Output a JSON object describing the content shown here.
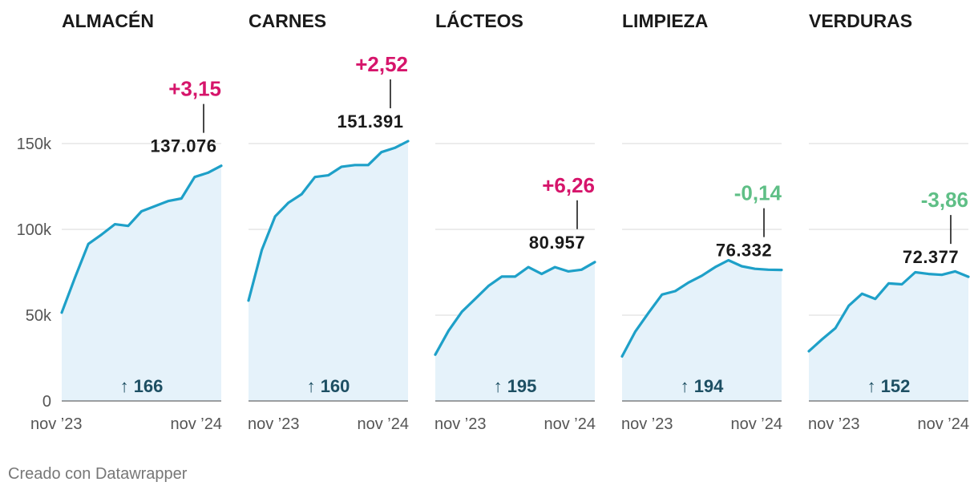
{
  "chart_data": {
    "type": "area",
    "ylim": [
      0,
      150000
    ],
    "y_ticks": [
      {
        "value": 0,
        "label": "0"
      },
      {
        "value": 50000,
        "label": "50k"
      },
      {
        "value": 100000,
        "label": "100k"
      },
      {
        "value": 150000,
        "label": "150k"
      }
    ],
    "x_start_label": "nov ’23",
    "x_end_label": "nov ’24",
    "gridlines": true,
    "panels": [
      {
        "title": "ALMACÉN",
        "values": [
          51500,
          72000,
          91500,
          97000,
          103000,
          102000,
          110500,
          113500,
          116500,
          118000,
          130500,
          133000,
          137076
        ],
        "last_label": "137.076",
        "change_label": "+3,15",
        "change_color": "#d6156b",
        "increase_label": "166"
      },
      {
        "title": "CARNES",
        "values": [
          58500,
          88000,
          107500,
          115500,
          120500,
          130500,
          131500,
          136500,
          137500,
          137500,
          145000,
          147500,
          151391
        ],
        "last_label": "151.391",
        "change_label": "+2,52",
        "change_color": "#d6156b",
        "increase_label": "160"
      },
      {
        "title": "LÁCTEOS",
        "values": [
          27000,
          41000,
          52000,
          59500,
          67000,
          72500,
          72500,
          78000,
          74000,
          78000,
          75500,
          76500,
          80957
        ],
        "last_label": "80.957",
        "change_label": "+6,26",
        "change_color": "#d6156b",
        "increase_label": "195"
      },
      {
        "title": "LIMPIEZA",
        "values": [
          26000,
          40500,
          51500,
          62000,
          64000,
          69000,
          73000,
          78000,
          82000,
          78500,
          77000,
          76500,
          76332
        ],
        "last_label": "76.332",
        "change_label": "-0,14",
        "change_color": "#5fbf86",
        "increase_label": "194"
      },
      {
        "title": "VERDURAS",
        "values": [
          29000,
          36000,
          42500,
          55500,
          62500,
          59500,
          68500,
          68000,
          75000,
          74000,
          73500,
          75500,
          72377
        ],
        "last_label": "72.377",
        "change_label": "-3,86",
        "change_color": "#5fbf86",
        "increase_label": "152"
      }
    ]
  },
  "credit": "Creado con Datawrapper"
}
